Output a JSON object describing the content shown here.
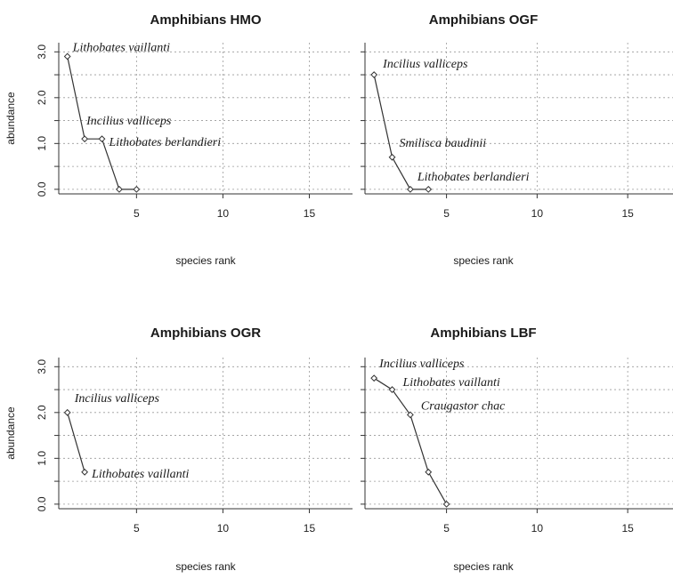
{
  "chart_data": [
    {
      "type": "line",
      "title": "Amphibians HMO",
      "xlabel": "species rank",
      "ylabel": "abundance",
      "xticks": [
        "5",
        "10",
        "15"
      ],
      "yticks": [
        "0.0",
        "1.0",
        "2.0",
        "3.0"
      ],
      "xlim": [
        0.5,
        17.5
      ],
      "ylim": [
        -0.1,
        3.2
      ],
      "x": [
        1,
        2,
        3,
        4,
        5
      ],
      "values": [
        2.9,
        1.1,
        1.1,
        0.0,
        0.0
      ],
      "annotations": [
        {
          "text": "Lithobates vaillanti",
          "x": 1,
          "y": 2.9
        },
        {
          "text": "Incilius valliceps",
          "x": 2,
          "y": 1.1
        },
        {
          "text": "Lithobates berlandieri",
          "x": 3,
          "y": 1.1
        }
      ],
      "grid": true
    },
    {
      "type": "line",
      "title": "Amphibians OGF",
      "xlabel": "species rank",
      "ylabel": "",
      "xticks": [
        "5",
        "10",
        "15"
      ],
      "yticks": [],
      "xlim": [
        0.5,
        17.5
      ],
      "ylim": [
        -0.1,
        3.2
      ],
      "x": [
        1,
        2,
        3,
        4
      ],
      "values": [
        2.5,
        0.7,
        0.0,
        0.0
      ],
      "annotations": [
        {
          "text": "Incilius valliceps",
          "x": 1,
          "y": 2.5
        },
        {
          "text": "Smilisca baudinii",
          "x": 2,
          "y": 0.7
        },
        {
          "text": "Lithobates berlandieri",
          "x": 3,
          "y": 0.0
        }
      ],
      "grid": true
    },
    {
      "type": "line",
      "title": "Amphibians OGR",
      "xlabel": "species rank",
      "ylabel": "abundance",
      "xticks": [
        "5",
        "10",
        "15"
      ],
      "yticks": [
        "0.0",
        "1.0",
        "2.0",
        "3.0"
      ],
      "xlim": [
        0.5,
        17.5
      ],
      "ylim": [
        -0.1,
        3.2
      ],
      "x": [
        1,
        2
      ],
      "values": [
        2.0,
        0.7
      ],
      "annotations": [
        {
          "text": "Incilius valliceps",
          "x": 1,
          "y": 2.0
        },
        {
          "text": "Lithobates vaillanti",
          "x": 2,
          "y": 0.7
        }
      ],
      "grid": true
    },
    {
      "type": "line",
      "title": "Amphibians LBF",
      "xlabel": "species rank",
      "ylabel": "",
      "xticks": [
        "5",
        "10",
        "15"
      ],
      "yticks": [],
      "xlim": [
        0.5,
        17.5
      ],
      "ylim": [
        -0.1,
        3.2
      ],
      "x": [
        1,
        2,
        3,
        4,
        5
      ],
      "values": [
        2.75,
        2.5,
        1.95,
        0.7,
        0.0
      ],
      "annotations": [
        {
          "text": "Incilius valliceps",
          "x": 1,
          "y": 2.75
        },
        {
          "text": "Lithobates vaillanti",
          "x": 2,
          "y": 2.5
        },
        {
          "text": "Craugastor chac",
          "x": 3,
          "y": 1.95
        }
      ],
      "grid": true
    }
  ]
}
